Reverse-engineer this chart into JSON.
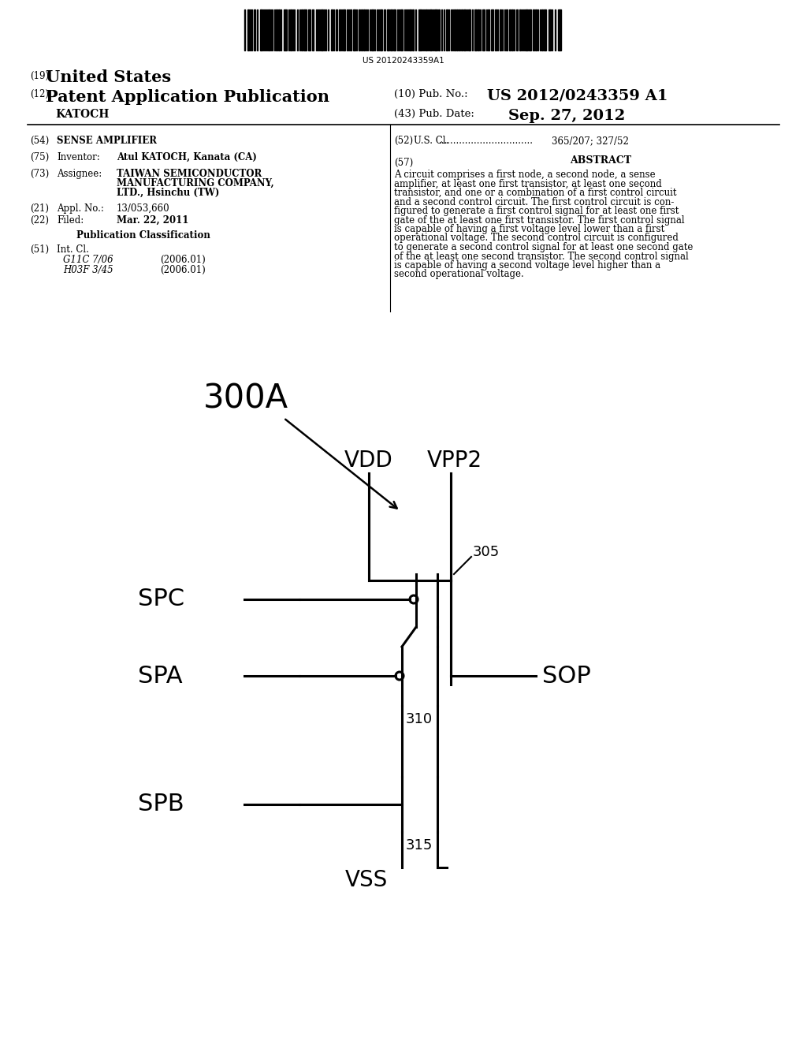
{
  "background_color": "#ffffff",
  "barcode_text": "US 20120243359A1",
  "header": {
    "country": "United States",
    "country_prefix": "(19)",
    "pub_type": "Patent Application Publication",
    "pub_type_prefix": "(12)",
    "inventor_last": "KATOCH",
    "pub_no_label": "(10) Pub. No.:",
    "pub_no": "US 2012/0243359 A1",
    "pub_date_label": "(43) Pub. Date:",
    "pub_date": "Sep. 27, 2012"
  },
  "left_col": {
    "title_num": "(54)",
    "title": "SENSE AMPLIFIER",
    "inventor_num": "(75)",
    "inventor_label": "Inventor:",
    "inventor": "Atul KATOCH, Kanata (CA)",
    "assignee_num": "(73)",
    "assignee_label": "Assignee:",
    "assignee_line1": "TAIWAN SEMICONDUCTOR",
    "assignee_line2": "MANUFACTURING COMPANY,",
    "assignee_line3": "LTD., Hsinchu (TW)",
    "appl_num": "(21)",
    "appl_label": "Appl. No.:",
    "appl": "13/053,660",
    "filed_num": "(22)",
    "filed_label": "Filed:",
    "filed": "Mar. 22, 2011",
    "pub_class": "Publication Classification",
    "int_cl_num": "(51)",
    "int_cl_label": "Int. Cl.",
    "int_cl_1": "G11C 7/06",
    "int_cl_1_date": "(2006.01)",
    "int_cl_2": "H03F 3/45",
    "int_cl_2_date": "(2006.01)"
  },
  "right_col": {
    "us_cl_num": "(52)",
    "us_cl_label": "U.S. Cl.",
    "us_cl_dots": "................................",
    "us_cl_val": "365/207; 327/52",
    "abstract_num": "(57)",
    "abstract_title": "ABSTRACT",
    "abstract_lines": [
      "A circuit comprises a first node, a second node, a sense",
      "amplifier, at least one first transistor, at least one second",
      "transistor, and one or a combination of a first control circuit",
      "and a second control circuit. The first control circuit is con-",
      "figured to generate a first control signal for at least one first",
      "gate of the at least one first transistor. The first control signal",
      "is capable of having a first voltage level lower than a first",
      "operational voltage. The second control circuit is configured",
      "to generate a second control signal for at least one second gate",
      "of the at least one second transistor. The second control signal",
      "is capable of having a second voltage level higher than a",
      "second operational voltage."
    ]
  },
  "diagram": {
    "label_300A": "300A",
    "label_vdd": "VDD",
    "label_vpp2": "VPP2",
    "label_305": "305",
    "label_310": "310",
    "label_315": "315",
    "label_spc": "SPC",
    "label_spa": "SPA",
    "label_spb": "SPB",
    "label_sop": "SOP",
    "label_vss": "VSS"
  }
}
